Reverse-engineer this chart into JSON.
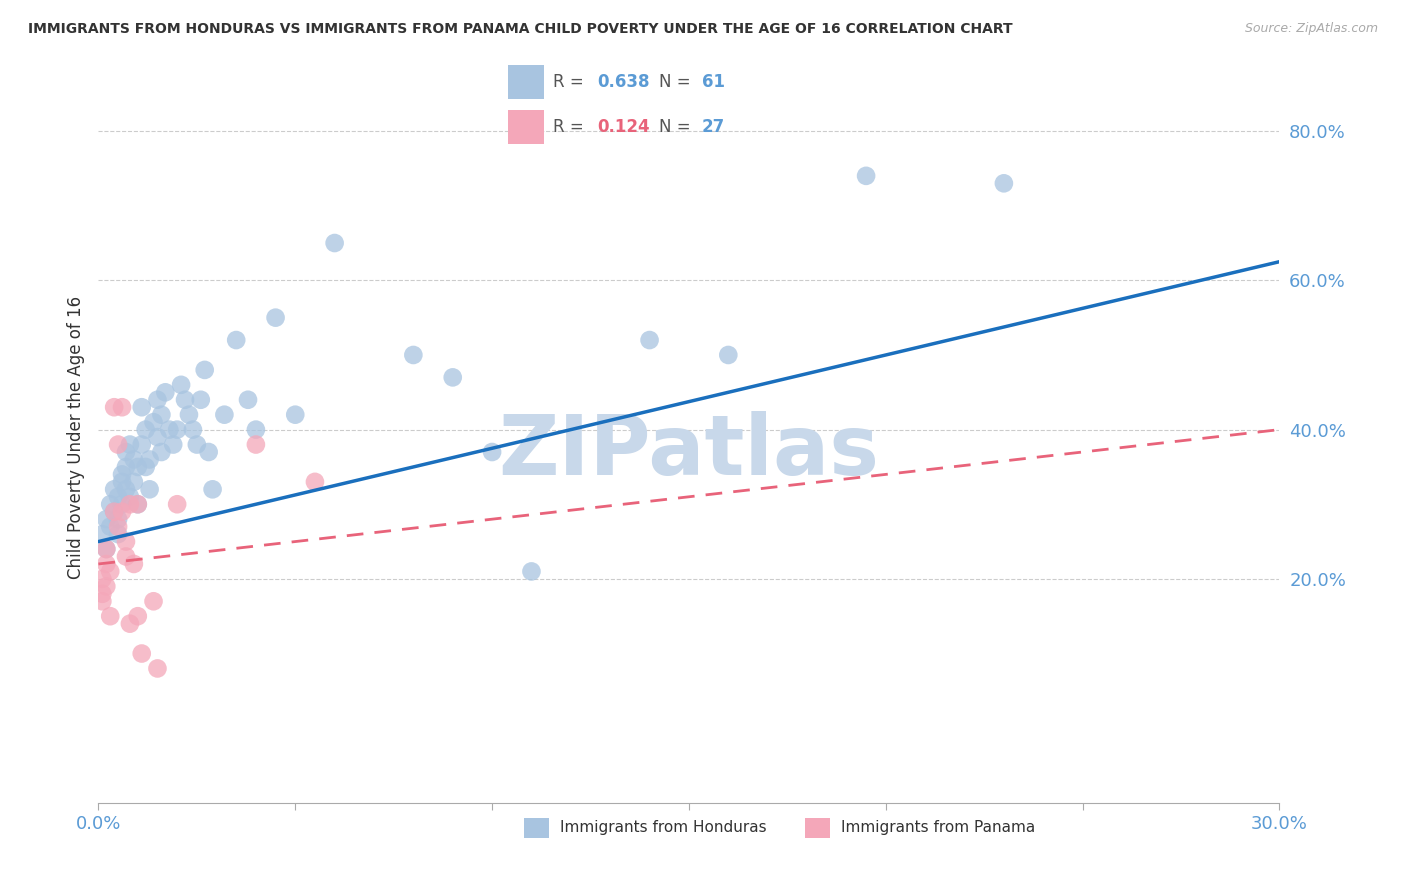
{
  "title": "IMMIGRANTS FROM HONDURAS VS IMMIGRANTS FROM PANAMA CHILD POVERTY UNDER THE AGE OF 16 CORRELATION CHART",
  "source": "Source: ZipAtlas.com",
  "ylabel": "Child Poverty Under the Age of 16",
  "xlim": [
    0.0,
    0.3
  ],
  "ylim": [
    -0.1,
    0.88
  ],
  "xtick_positions": [
    0.0,
    0.05,
    0.1,
    0.15,
    0.2,
    0.25,
    0.3
  ],
  "xtick_labels_show": {
    "0.0": "0.0%",
    "0.30": "30.0%"
  },
  "yticks": [
    0.2,
    0.4,
    0.6,
    0.8
  ],
  "legend_r_honduras": "0.638",
  "legend_n_honduras": "61",
  "legend_r_panama": "0.124",
  "legend_n_panama": "27",
  "honduras_color": "#a8c4e0",
  "panama_color": "#f4a7b9",
  "honduras_line_color": "#1a6fbd",
  "panama_line_color": "#e8637a",
  "watermark": "ZIPatlas",
  "watermark_color": "#c8d8ea",
  "honduras_line_y0": 0.25,
  "honduras_line_y1": 0.625,
  "panama_line_y0": 0.22,
  "panama_line_y1": 0.4,
  "honduras_x": [
    0.001,
    0.002,
    0.002,
    0.003,
    0.003,
    0.004,
    0.004,
    0.005,
    0.005,
    0.005,
    0.006,
    0.006,
    0.006,
    0.007,
    0.007,
    0.007,
    0.008,
    0.008,
    0.009,
    0.009,
    0.01,
    0.01,
    0.011,
    0.011,
    0.012,
    0.012,
    0.013,
    0.013,
    0.014,
    0.015,
    0.015,
    0.016,
    0.016,
    0.017,
    0.018,
    0.019,
    0.02,
    0.021,
    0.022,
    0.023,
    0.024,
    0.025,
    0.026,
    0.027,
    0.028,
    0.029,
    0.032,
    0.035,
    0.038,
    0.04,
    0.045,
    0.05,
    0.06,
    0.08,
    0.09,
    0.1,
    0.11,
    0.14,
    0.16,
    0.195,
    0.23
  ],
  "honduras_y": [
    0.26,
    0.24,
    0.28,
    0.27,
    0.3,
    0.29,
    0.32,
    0.28,
    0.31,
    0.26,
    0.34,
    0.3,
    0.33,
    0.32,
    0.35,
    0.37,
    0.31,
    0.38,
    0.33,
    0.36,
    0.35,
    0.3,
    0.38,
    0.43,
    0.35,
    0.4,
    0.32,
    0.36,
    0.41,
    0.39,
    0.44,
    0.37,
    0.42,
    0.45,
    0.4,
    0.38,
    0.4,
    0.46,
    0.44,
    0.42,
    0.4,
    0.38,
    0.44,
    0.48,
    0.37,
    0.32,
    0.42,
    0.52,
    0.44,
    0.4,
    0.55,
    0.42,
    0.65,
    0.5,
    0.47,
    0.37,
    0.21,
    0.52,
    0.5,
    0.74,
    0.73
  ],
  "panama_x": [
    0.001,
    0.001,
    0.001,
    0.002,
    0.002,
    0.002,
    0.003,
    0.003,
    0.004,
    0.004,
    0.005,
    0.005,
    0.006,
    0.006,
    0.007,
    0.007,
    0.008,
    0.008,
    0.009,
    0.01,
    0.01,
    0.011,
    0.014,
    0.015,
    0.02,
    0.04,
    0.055
  ],
  "panama_y": [
    0.2,
    0.18,
    0.17,
    0.22,
    0.19,
    0.24,
    0.21,
    0.15,
    0.43,
    0.29,
    0.38,
    0.27,
    0.43,
    0.29,
    0.25,
    0.23,
    0.3,
    0.14,
    0.22,
    0.3,
    0.15,
    0.1,
    0.17,
    0.08,
    0.3,
    0.38,
    0.33
  ]
}
